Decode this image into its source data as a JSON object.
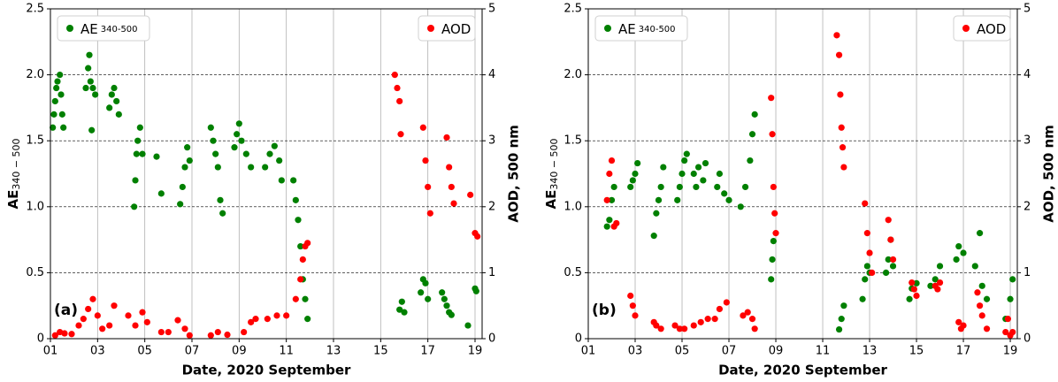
{
  "chart_data": [
    {
      "type": "scatter",
      "panel_label": "(a)",
      "x_label": "Date, 2020 September",
      "y_label": "AE",
      "y_label_subscript": "340 − 500",
      "y2_label": "AOD, 500 nm",
      "xlim": [
        1,
        19.3
      ],
      "xticks": [
        {
          "value": 1,
          "label": "01"
        },
        {
          "value": 3,
          "label": "03"
        },
        {
          "value": 5,
          "label": "05"
        },
        {
          "value": 7,
          "label": "07"
        },
        {
          "value": 9,
          "label": "09"
        },
        11,
        13,
        15,
        17,
        19
      ],
      "ylim": [
        0,
        2.5
      ],
      "yticks": [
        0,
        0.5,
        {
          "value": 1,
          "label": "1.0"
        },
        1.5,
        {
          "value": 2,
          "label": "2.0"
        },
        2.5
      ],
      "y2lim": [
        0,
        5
      ],
      "y2ticks": [
        0,
        1,
        2,
        3,
        4,
        5
      ],
      "grid": true,
      "series": [
        {
          "name": "AE",
          "name_subscript": "340-500",
          "color": "#008000",
          "legend": "upper left",
          "x": [
            1.1,
            1.15,
            1.2,
            1.25,
            1.3,
            1.4,
            1.45,
            1.5,
            1.55,
            2.5,
            2.6,
            2.65,
            2.7,
            2.75,
            2.8,
            2.9,
            3.5,
            3.6,
            3.7,
            3.8,
            3.9,
            4.55,
            4.6,
            4.65,
            4.7,
            4.8,
            4.9,
            5.5,
            5.7,
            6.5,
            6.6,
            6.7,
            6.8,
            6.9,
            7.8,
            7.9,
            8.0,
            8.1,
            8.2,
            8.3,
            8.8,
            8.9,
            9.0,
            9.1,
            9.3,
            9.5,
            10.1,
            10.3,
            10.5,
            10.7,
            10.8,
            11.3,
            11.4,
            11.5,
            11.6,
            11.7,
            11.8,
            11.9,
            15.8,
            15.9,
            16.0,
            16.7,
            16.8,
            16.9,
            17.0,
            17.6,
            17.7,
            17.8,
            17.9,
            18.0,
            18.7,
            19.0,
            19.05
          ],
          "values": [
            1.6,
            1.7,
            1.8,
            1.9,
            1.95,
            2.0,
            1.85,
            1.7,
            1.6,
            1.9,
            2.05,
            2.15,
            1.95,
            1.58,
            1.9,
            1.85,
            1.75,
            1.85,
            1.9,
            1.8,
            1.7,
            1.0,
            1.2,
            1.4,
            1.5,
            1.6,
            1.4,
            1.38,
            1.1,
            1.02,
            1.15,
            1.3,
            1.45,
            1.35,
            1.6,
            1.5,
            1.4,
            1.3,
            1.05,
            0.95,
            1.45,
            1.55,
            1.63,
            1.5,
            1.4,
            1.3,
            1.3,
            1.4,
            1.46,
            1.35,
            1.2,
            1.2,
            1.05,
            0.9,
            0.7,
            0.45,
            0.3,
            0.15,
            0.22,
            0.28,
            0.2,
            0.35,
            0.45,
            0.42,
            0.3,
            0.35,
            0.3,
            0.25,
            0.2,
            0.18,
            0.1,
            0.38,
            0.36
          ]
        },
        {
          "name": "AOD",
          "color": "#ff0000",
          "axis": "y2",
          "legend": "upper right",
          "x": [
            1.2,
            1.4,
            1.6,
            1.9,
            2.2,
            2.4,
            2.6,
            2.8,
            3.0,
            3.2,
            3.5,
            3.7,
            4.3,
            4.6,
            4.9,
            5.1,
            5.7,
            6.0,
            6.4,
            6.7,
            6.9,
            7.8,
            8.1,
            8.5,
            9.2,
            9.5,
            9.7,
            10.2,
            10.6,
            11.0,
            11.4,
            11.6,
            11.7,
            11.8,
            11.9,
            15.6,
            15.7,
            15.8,
            15.85,
            16.8,
            16.9,
            17.0,
            17.1,
            17.8,
            17.9,
            18.0,
            18.1,
            18.8,
            19.0,
            19.1
          ],
          "values": [
            0.05,
            0.1,
            0.08,
            0.07,
            0.2,
            0.3,
            0.45,
            0.6,
            0.35,
            0.15,
            0.2,
            0.5,
            0.35,
            0.2,
            0.4,
            0.25,
            0.1,
            0.1,
            0.28,
            0.15,
            0.05,
            0.05,
            0.1,
            0.06,
            0.1,
            0.25,
            0.3,
            0.3,
            0.35,
            0.35,
            0.6,
            0.9,
            1.2,
            1.4,
            1.45,
            4.0,
            3.8,
            3.6,
            3.1,
            3.2,
            2.7,
            2.3,
            1.9,
            3.05,
            2.6,
            2.3,
            2.05,
            2.18,
            1.6,
            1.55
          ]
        }
      ]
    },
    {
      "type": "scatter",
      "panel_label": "(b)",
      "x_label": "Date, 2020 September",
      "y_label": "AE",
      "y_label_subscript": "340 − 500",
      "y2_label": "AOD, 500 nm",
      "xlim": [
        1,
        19.3
      ],
      "xticks": [
        {
          "value": 1,
          "label": "01"
        },
        {
          "value": 3,
          "label": "03"
        },
        {
          "value": 5,
          "label": "05"
        },
        {
          "value": 7,
          "label": "07"
        },
        {
          "value": 9,
          "label": "09"
        },
        11,
        13,
        15,
        17,
        19
      ],
      "ylim": [
        0,
        2.5
      ],
      "yticks": [
        0,
        0.5,
        {
          "value": 1,
          "label": "1.0"
        },
        1.5,
        {
          "value": 2,
          "label": "2.0"
        },
        2.5
      ],
      "y2lim": [
        0,
        5
      ],
      "y2ticks": [
        0,
        1,
        2,
        3,
        4,
        5
      ],
      "grid": true,
      "series": [
        {
          "name": "AE",
          "name_subscript": "340-500",
          "color": "#008000",
          "legend": "upper left",
          "x": [
            1.8,
            1.9,
            2.0,
            2.1,
            2.8,
            2.9,
            3.0,
            3.1,
            3.8,
            3.9,
            4.0,
            4.1,
            4.2,
            4.8,
            4.9,
            5.0,
            5.1,
            5.2,
            5.5,
            5.6,
            5.7,
            5.9,
            6.0,
            6.5,
            6.6,
            6.8,
            7.0,
            7.5,
            7.7,
            7.9,
            8.0,
            8.1,
            8.8,
            8.85,
            8.9,
            11.7,
            11.8,
            11.9,
            12.7,
            12.8,
            12.9,
            13.0,
            13.7,
            13.8,
            13.9,
            14.0,
            14.7,
            14.8,
            15.0,
            15.6,
            15.8,
            16.0,
            16.7,
            16.8,
            17.0,
            17.5,
            17.7,
            17.8,
            18.0,
            18.8,
            19.0,
            19.1
          ],
          "values": [
            0.85,
            0.9,
            1.05,
            1.15,
            1.15,
            1.2,
            1.25,
            1.33,
            0.78,
            0.95,
            1.05,
            1.15,
            1.3,
            1.05,
            1.15,
            1.25,
            1.35,
            1.4,
            1.25,
            1.15,
            1.3,
            1.2,
            1.33,
            1.15,
            1.25,
            1.1,
            1.05,
            1.0,
            1.15,
            1.35,
            1.55,
            1.7,
            0.45,
            0.6,
            0.74,
            0.07,
            0.15,
            0.25,
            0.3,
            0.45,
            0.55,
            0.5,
            0.5,
            0.6,
            0.75,
            0.55,
            0.3,
            0.38,
            0.42,
            0.4,
            0.45,
            0.55,
            0.6,
            0.7,
            0.65,
            0.55,
            0.8,
            0.4,
            0.3,
            0.15,
            0.3,
            0.45
          ]
        },
        {
          "name": "AOD",
          "color": "#ff0000",
          "axis": "y2",
          "legend": "upper right",
          "x": [
            1.8,
            1.9,
            2.0,
            2.1,
            2.2,
            2.8,
            2.9,
            3.0,
            3.8,
            3.9,
            4.1,
            4.7,
            4.9,
            5.1,
            5.5,
            5.8,
            6.1,
            6.4,
            6.6,
            6.9,
            7.6,
            7.8,
            8.0,
            8.1,
            8.8,
            8.85,
            8.9,
            8.95,
            9.0,
            11.6,
            11.7,
            11.75,
            11.8,
            11.85,
            11.9,
            12.8,
            12.9,
            13.0,
            13.1,
            13.8,
            13.9,
            14.0,
            14.8,
            14.9,
            15.0,
            15.8,
            15.9,
            16.0,
            16.8,
            16.9,
            17.0,
            17.6,
            17.7,
            17.8,
            18.0,
            18.8,
            18.9,
            19.0,
            19.1
          ],
          "values": [
            2.1,
            2.5,
            2.7,
            1.7,
            1.75,
            0.65,
            0.5,
            0.35,
            0.25,
            0.2,
            0.15,
            0.2,
            0.15,
            0.15,
            0.2,
            0.25,
            0.3,
            0.3,
            0.45,
            0.55,
            0.35,
            0.4,
            0.3,
            0.15,
            3.65,
            3.1,
            2.3,
            1.9,
            1.6,
            4.6,
            4.3,
            3.7,
            3.2,
            2.9,
            2.6,
            2.05,
            1.6,
            1.3,
            1.0,
            1.8,
            1.5,
            1.2,
            0.85,
            0.75,
            0.65,
            0.8,
            0.75,
            0.85,
            0.25,
            0.15,
            0.2,
            0.7,
            0.5,
            0.35,
            0.15,
            0.1,
            0.3,
            0.05,
            0.1
          ]
        }
      ]
    }
  ]
}
